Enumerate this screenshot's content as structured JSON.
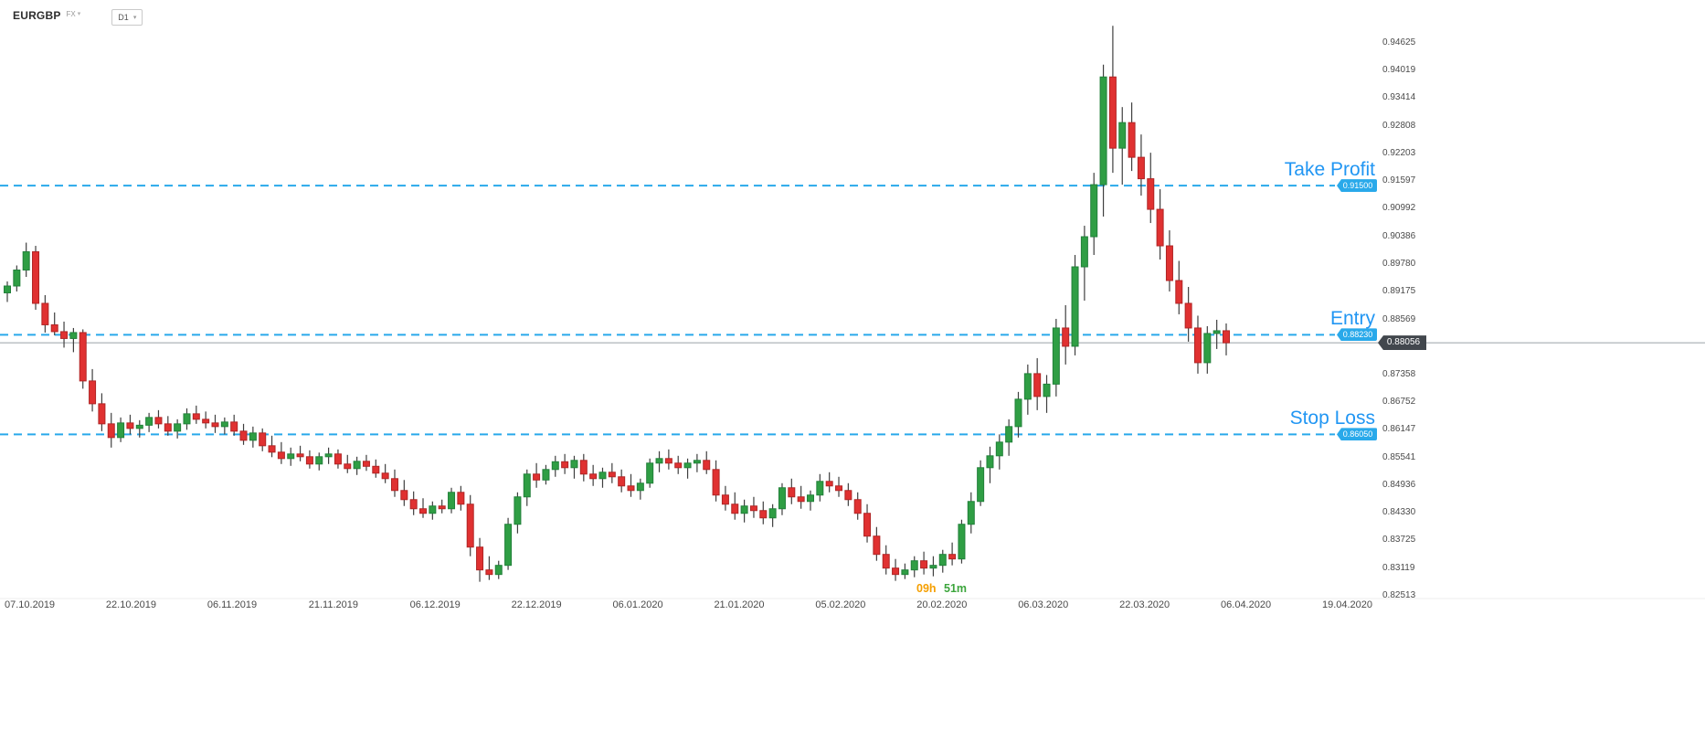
{
  "header": {
    "symbol": "EURGBP",
    "market": "FX",
    "market_caret": "▾",
    "timeframe": "D1",
    "timeframe_caret": "▾"
  },
  "countdown": {
    "hours": "09h",
    "minutes": "51m"
  },
  "colors": {
    "order_blue": "#2196f3",
    "line_blue": "#29a9ea",
    "candle_up": "#2f9e44",
    "candle_up_border": "#22803a",
    "candle_down": "#e03131",
    "candle_down_border": "#b02525",
    "wick": "#3f3f3f",
    "current_line": "#9aa0a6",
    "current_tag_bg": "#42474d",
    "axis_text": "#4a4a4a"
  },
  "chart_data": {
    "type": "candlestick",
    "symbol": "EURGBP",
    "timeframe": "D1",
    "ylim": [
      0.82513,
      0.94625
    ],
    "y_ticks": [
      "0.94625",
      "0.94019",
      "0.93414",
      "0.92808",
      "0.92203",
      "0.91597",
      "0.90992",
      "0.90386",
      "0.89780",
      "0.89175",
      "0.88569",
      "0.87358",
      "0.86752",
      "0.86147",
      "0.85541",
      "0.84936",
      "0.84330",
      "0.83725",
      "0.83119",
      "0.82513"
    ],
    "x_ticks": [
      "07.10.2019",
      "22.10.2019",
      "06.11.2019",
      "21.11.2019",
      "06.12.2019",
      "22.12.2019",
      "06.01.2020",
      "21.01.2020",
      "05.02.2020",
      "20.02.2020",
      "06.03.2020",
      "22.03.2020",
      "06.04.2020",
      "19.04.2020"
    ],
    "current_price": "0.88056",
    "lines": [
      {
        "id": "take-profit",
        "label": "Take Profit",
        "price": 0.915,
        "price_label": "0.91500"
      },
      {
        "id": "entry",
        "label": "Entry",
        "price": 0.8823,
        "price_label": "0.88230"
      },
      {
        "id": "stop-loss",
        "label": "Stop Loss",
        "price": 0.8605,
        "price_label": "0.86050"
      }
    ],
    "candles": [
      [
        0.8915,
        0.894,
        0.8895,
        0.893
      ],
      [
        0.893,
        0.8975,
        0.8918,
        0.8965
      ],
      [
        0.8965,
        0.9025,
        0.895,
        0.9005
      ],
      [
        0.9005,
        0.9018,
        0.8878,
        0.8892
      ],
      [
        0.8892,
        0.891,
        0.8828,
        0.8845
      ],
      [
        0.8845,
        0.8872,
        0.8822,
        0.883
      ],
      [
        0.883,
        0.8852,
        0.8795,
        0.8815
      ],
      [
        0.8815,
        0.8838,
        0.8785,
        0.8828
      ],
      [
        0.8828,
        0.8835,
        0.8705,
        0.8722
      ],
      [
        0.8722,
        0.8748,
        0.8655,
        0.8672
      ],
      [
        0.8672,
        0.8695,
        0.8612,
        0.8628
      ],
      [
        0.8628,
        0.8652,
        0.8576,
        0.8598
      ],
      [
        0.8598,
        0.8642,
        0.8588,
        0.863
      ],
      [
        0.863,
        0.8648,
        0.8605,
        0.8618
      ],
      [
        0.8618,
        0.8636,
        0.8598,
        0.8625
      ],
      [
        0.8625,
        0.8652,
        0.861,
        0.8642
      ],
      [
        0.8642,
        0.8658,
        0.8618,
        0.8628
      ],
      [
        0.8628,
        0.8645,
        0.8602,
        0.8612
      ],
      [
        0.8612,
        0.8638,
        0.8596,
        0.8628
      ],
      [
        0.8628,
        0.8662,
        0.8615,
        0.865
      ],
      [
        0.865,
        0.8668,
        0.8628,
        0.8638
      ],
      [
        0.8638,
        0.8655,
        0.8618,
        0.863
      ],
      [
        0.863,
        0.8648,
        0.8608,
        0.8622
      ],
      [
        0.8622,
        0.8642,
        0.8605,
        0.8632
      ],
      [
        0.8632,
        0.8648,
        0.8602,
        0.8612
      ],
      [
        0.8612,
        0.8628,
        0.8582,
        0.8592
      ],
      [
        0.8592,
        0.8622,
        0.8576,
        0.8608
      ],
      [
        0.8608,
        0.8618,
        0.8568,
        0.858
      ],
      [
        0.858,
        0.8602,
        0.8555,
        0.8566
      ],
      [
        0.8566,
        0.8588,
        0.854,
        0.8552
      ],
      [
        0.8552,
        0.8576,
        0.8536,
        0.8562
      ],
      [
        0.8562,
        0.858,
        0.8546,
        0.8556
      ],
      [
        0.8556,
        0.857,
        0.853,
        0.854
      ],
      [
        0.854,
        0.8565,
        0.8526,
        0.8556
      ],
      [
        0.8556,
        0.8576,
        0.854,
        0.8562
      ],
      [
        0.8562,
        0.8572,
        0.853,
        0.854
      ],
      [
        0.854,
        0.856,
        0.852,
        0.853
      ],
      [
        0.853,
        0.8556,
        0.8516,
        0.8546
      ],
      [
        0.8546,
        0.856,
        0.8525,
        0.8535
      ],
      [
        0.8535,
        0.855,
        0.851,
        0.852
      ],
      [
        0.852,
        0.854,
        0.8498,
        0.8508
      ],
      [
        0.8508,
        0.8528,
        0.8468,
        0.8482
      ],
      [
        0.8482,
        0.8505,
        0.8448,
        0.8462
      ],
      [
        0.8462,
        0.848,
        0.8428,
        0.8442
      ],
      [
        0.8442,
        0.8465,
        0.8422,
        0.8432
      ],
      [
        0.8432,
        0.8458,
        0.8418,
        0.8448
      ],
      [
        0.8448,
        0.8462,
        0.8432,
        0.8442
      ],
      [
        0.8442,
        0.8488,
        0.8432,
        0.8478
      ],
      [
        0.8478,
        0.8492,
        0.8438,
        0.8452
      ],
      [
        0.8452,
        0.8472,
        0.8338,
        0.8358
      ],
      [
        0.8358,
        0.8378,
        0.8282,
        0.8308
      ],
      [
        0.8308,
        0.8338,
        0.8286,
        0.8298
      ],
      [
        0.8298,
        0.8328,
        0.8288,
        0.8318
      ],
      [
        0.8318,
        0.8422,
        0.8308,
        0.8408
      ],
      [
        0.8408,
        0.8478,
        0.8388,
        0.8468
      ],
      [
        0.8468,
        0.8528,
        0.8448,
        0.8518
      ],
      [
        0.8518,
        0.8542,
        0.8488,
        0.8505
      ],
      [
        0.8505,
        0.8538,
        0.8495,
        0.8528
      ],
      [
        0.8528,
        0.8558,
        0.8512,
        0.8545
      ],
      [
        0.8545,
        0.8562,
        0.8518,
        0.8532
      ],
      [
        0.8532,
        0.8558,
        0.8508,
        0.8548
      ],
      [
        0.8548,
        0.8562,
        0.8502,
        0.8518
      ],
      [
        0.8518,
        0.8538,
        0.8492,
        0.8508
      ],
      [
        0.8508,
        0.8532,
        0.8488,
        0.8522
      ],
      [
        0.8522,
        0.8542,
        0.8498,
        0.8512
      ],
      [
        0.8512,
        0.8528,
        0.8478,
        0.8492
      ],
      [
        0.8492,
        0.8518,
        0.8468,
        0.8482
      ],
      [
        0.8482,
        0.8508,
        0.8462,
        0.8498
      ],
      [
        0.8498,
        0.8552,
        0.8488,
        0.8542
      ],
      [
        0.8542,
        0.8568,
        0.8522,
        0.8552
      ],
      [
        0.8552,
        0.8572,
        0.8528,
        0.8542
      ],
      [
        0.8542,
        0.8558,
        0.8518,
        0.8532
      ],
      [
        0.8532,
        0.8552,
        0.8508,
        0.8542
      ],
      [
        0.8542,
        0.8562,
        0.8522,
        0.8548
      ],
      [
        0.8548,
        0.8568,
        0.8518,
        0.8528
      ],
      [
        0.8528,
        0.8548,
        0.8458,
        0.8472
      ],
      [
        0.8472,
        0.8492,
        0.8438,
        0.8452
      ],
      [
        0.8452,
        0.8478,
        0.8418,
        0.8432
      ],
      [
        0.8432,
        0.8462,
        0.8412,
        0.8448
      ],
      [
        0.8448,
        0.8468,
        0.8422,
        0.8438
      ],
      [
        0.8438,
        0.8458,
        0.8408,
        0.8422
      ],
      [
        0.8422,
        0.8452,
        0.8402,
        0.8442
      ],
      [
        0.8442,
        0.8498,
        0.8428,
        0.8488
      ],
      [
        0.8488,
        0.8508,
        0.8452,
        0.8468
      ],
      [
        0.8468,
        0.8492,
        0.8442,
        0.8458
      ],
      [
        0.8458,
        0.8482,
        0.8438,
        0.8472
      ],
      [
        0.8472,
        0.8518,
        0.8458,
        0.8502
      ],
      [
        0.8502,
        0.8522,
        0.8478,
        0.8492
      ],
      [
        0.8492,
        0.8512,
        0.8468,
        0.8482
      ],
      [
        0.8482,
        0.8498,
        0.8448,
        0.8462
      ],
      [
        0.8462,
        0.8478,
        0.8418,
        0.8432
      ],
      [
        0.8432,
        0.8452,
        0.8368,
        0.8382
      ],
      [
        0.8382,
        0.8402,
        0.8328,
        0.8342
      ],
      [
        0.8342,
        0.8362,
        0.8298,
        0.8312
      ],
      [
        0.8312,
        0.8332,
        0.8284,
        0.8298
      ],
      [
        0.8298,
        0.8322,
        0.8288,
        0.8308
      ],
      [
        0.8308,
        0.8338,
        0.8292,
        0.8328
      ],
      [
        0.8328,
        0.8348,
        0.8298,
        0.8312
      ],
      [
        0.8312,
        0.8338,
        0.8294,
        0.8318
      ],
      [
        0.8318,
        0.8352,
        0.8302,
        0.8342
      ],
      [
        0.8342,
        0.8368,
        0.8318,
        0.8332
      ],
      [
        0.8332,
        0.8418,
        0.8322,
        0.8408
      ],
      [
        0.8408,
        0.8478,
        0.8388,
        0.8458
      ],
      [
        0.8458,
        0.8548,
        0.8448,
        0.8532
      ],
      [
        0.8532,
        0.8578,
        0.8498,
        0.8558
      ],
      [
        0.8558,
        0.8605,
        0.8528,
        0.8588
      ],
      [
        0.8588,
        0.8638,
        0.8558,
        0.8622
      ],
      [
        0.8622,
        0.8698,
        0.8598,
        0.8682
      ],
      [
        0.8682,
        0.8758,
        0.8648,
        0.8738
      ],
      [
        0.8738,
        0.8772,
        0.8658,
        0.8688
      ],
      [
        0.8688,
        0.8735,
        0.8652,
        0.8715
      ],
      [
        0.8715,
        0.8858,
        0.8688,
        0.8838
      ],
      [
        0.8838,
        0.8888,
        0.8758,
        0.8798
      ],
      [
        0.8798,
        0.8998,
        0.8778,
        0.8972
      ],
      [
        0.8972,
        0.9062,
        0.8898,
        0.9038
      ],
      [
        0.9038,
        0.9178,
        0.8998,
        0.9152
      ],
      [
        0.9152,
        0.9415,
        0.9082,
        0.9388
      ],
      [
        0.9388,
        0.95,
        0.9178,
        0.9232
      ],
      [
        0.9232,
        0.9322,
        0.9152,
        0.9288
      ],
      [
        0.9288,
        0.9332,
        0.9182,
        0.9212
      ],
      [
        0.9212,
        0.9262,
        0.9128,
        0.9165
      ],
      [
        0.9165,
        0.9222,
        0.9068,
        0.9098
      ],
      [
        0.9098,
        0.9142,
        0.8988,
        0.9018
      ],
      [
        0.9018,
        0.9052,
        0.8918,
        0.8942
      ],
      [
        0.8942,
        0.8985,
        0.8868,
        0.8892
      ],
      [
        0.8892,
        0.8928,
        0.8808,
        0.8838
      ],
      [
        0.8838,
        0.8865,
        0.8738,
        0.8762
      ],
      [
        0.8762,
        0.8842,
        0.8738,
        0.8826
      ],
      [
        0.8826,
        0.8856,
        0.8792,
        0.8832
      ],
      [
        0.8832,
        0.8848,
        0.8778,
        0.88056
      ]
    ]
  }
}
